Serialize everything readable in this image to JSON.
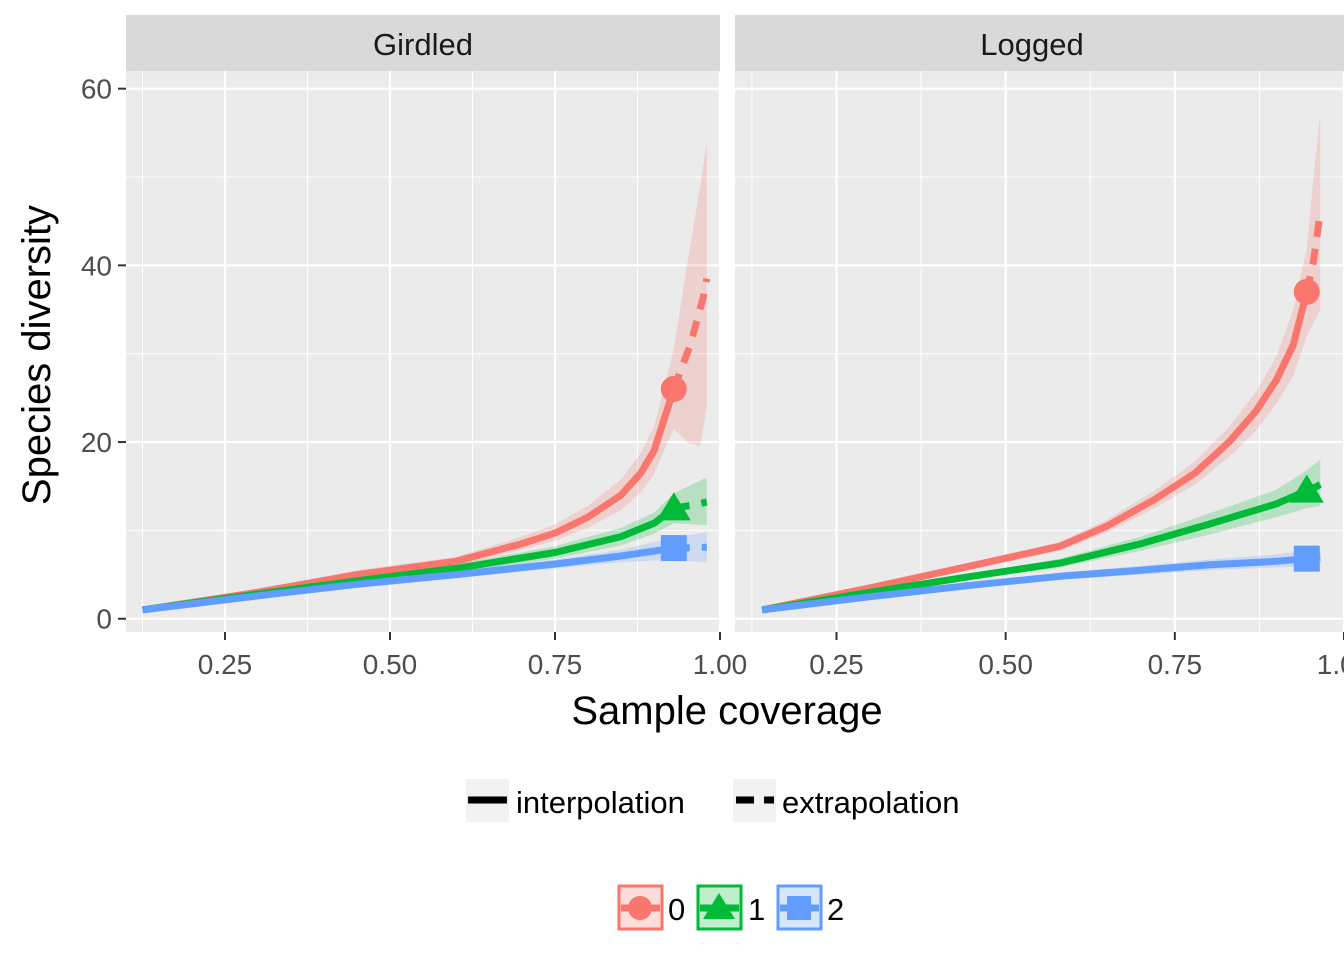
{
  "chart_data": {
    "type": "line",
    "xlabel": "Sample coverage",
    "ylabel": "Species diversity",
    "xlim": [
      0.1,
      1.0
    ],
    "ylim": [
      -1.5,
      62
    ],
    "x_ticks": [
      0.25,
      0.5,
      0.75,
      1.0
    ],
    "x_tick_labels": [
      "0.25",
      "0.50",
      "0.75",
      "1.00"
    ],
    "y_ticks": [
      0,
      20,
      40,
      60
    ],
    "y_tick_labels": [
      "0",
      "20",
      "40",
      "60"
    ],
    "legend_linetype": {
      "position": "bottom",
      "items": [
        {
          "key": "interpolation",
          "label": "interpolation"
        },
        {
          "key": "extrapolation",
          "label": "extrapolation"
        }
      ]
    },
    "legend_order": {
      "position": "bottom",
      "items": [
        {
          "key": "0",
          "label": "0",
          "color": "#F8766D",
          "shape": "circle"
        },
        {
          "key": "1",
          "label": "1",
          "color": "#00BA38",
          "shape": "triangle"
        },
        {
          "key": "2",
          "label": "2",
          "color": "#619CFF",
          "shape": "square"
        }
      ]
    },
    "panels": [
      {
        "name": "girdled",
        "title": "Girdled",
        "series": [
          {
            "order": "0",
            "color": "#F8766D",
            "shape": "circle",
            "observed": [
              0.93,
              26
            ],
            "interp": [
              [
                0.125,
                1
              ],
              [
                0.3,
                3
              ],
              [
                0.45,
                5
              ],
              [
                0.6,
                6.5
              ],
              [
                0.7,
                8.5
              ],
              [
                0.75,
                9.7
              ],
              [
                0.8,
                11.5
              ],
              [
                0.85,
                14
              ],
              [
                0.88,
                16.5
              ],
              [
                0.9,
                19
              ],
              [
                0.915,
                22.5
              ],
              [
                0.93,
                26
              ]
            ],
            "extrap": [
              [
                0.93,
                26
              ],
              [
                0.955,
                31
              ],
              [
                0.975,
                36.5
              ],
              [
                0.98,
                38.5
              ]
            ],
            "lower": [
              [
                0.125,
                1
              ],
              [
                0.3,
                2.8
              ],
              [
                0.45,
                4.6
              ],
              [
                0.6,
                6
              ],
              [
                0.7,
                7.8
              ],
              [
                0.75,
                8.8
              ],
              [
                0.8,
                10.3
              ],
              [
                0.85,
                12.3
              ],
              [
                0.88,
                14.3
              ],
              [
                0.9,
                16.3
              ],
              [
                0.915,
                19
              ],
              [
                0.93,
                21.5
              ],
              [
                0.95,
                20
              ],
              [
                0.97,
                19.5
              ],
              [
                0.98,
                24
              ]
            ],
            "upper": [
              [
                0.125,
                1.2
              ],
              [
                0.3,
                3.3
              ],
              [
                0.45,
                5.5
              ],
              [
                0.6,
                7
              ],
              [
                0.7,
                9.3
              ],
              [
                0.75,
                10.7
              ],
              [
                0.8,
                12.8
              ],
              [
                0.85,
                15.8
              ],
              [
                0.88,
                18.8
              ],
              [
                0.9,
                21.8
              ],
              [
                0.915,
                26
              ],
              [
                0.93,
                30.5
              ],
              [
                0.95,
                40
              ],
              [
                0.97,
                49
              ],
              [
                0.98,
                54
              ]
            ]
          },
          {
            "order": "1",
            "color": "#00BA38",
            "shape": "triangle",
            "observed": [
              0.93,
              12.5
            ],
            "interp": [
              [
                0.125,
                1
              ],
              [
                0.3,
                2.8
              ],
              [
                0.45,
                4.3
              ],
              [
                0.6,
                5.7
              ],
              [
                0.75,
                7.5
              ],
              [
                0.85,
                9.3
              ],
              [
                0.9,
                10.8
              ],
              [
                0.93,
                12.5
              ]
            ],
            "extrap": [
              [
                0.93,
                12.5
              ],
              [
                0.96,
                12.9
              ],
              [
                0.98,
                13.2
              ]
            ],
            "lower": [
              [
                0.125,
                1
              ],
              [
                0.3,
                2.6
              ],
              [
                0.45,
                4
              ],
              [
                0.6,
                5.2
              ],
              [
                0.75,
                6.8
              ],
              [
                0.85,
                8.3
              ],
              [
                0.9,
                9.6
              ],
              [
                0.93,
                10.8
              ],
              [
                0.98,
                10.6
              ]
            ],
            "upper": [
              [
                0.125,
                1.2
              ],
              [
                0.3,
                3
              ],
              [
                0.45,
                4.6
              ],
              [
                0.6,
                6.2
              ],
              [
                0.75,
                8.2
              ],
              [
                0.85,
                10.3
              ],
              [
                0.9,
                12
              ],
              [
                0.93,
                14.2
              ],
              [
                0.98,
                16
              ]
            ]
          },
          {
            "order": "2",
            "color": "#619CFF",
            "shape": "square",
            "observed": [
              0.93,
              8
            ],
            "interp": [
              [
                0.125,
                1
              ],
              [
                0.3,
                2.6
              ],
              [
                0.45,
                3.9
              ],
              [
                0.6,
                5
              ],
              [
                0.75,
                6.2
              ],
              [
                0.85,
                7.1
              ],
              [
                0.93,
                8
              ]
            ],
            "extrap": [
              [
                0.93,
                8
              ],
              [
                0.96,
                8.05
              ],
              [
                0.98,
                8.1
              ]
            ],
            "lower": [
              [
                0.125,
                1
              ],
              [
                0.3,
                2.4
              ],
              [
                0.45,
                3.6
              ],
              [
                0.6,
                4.6
              ],
              [
                0.75,
                5.7
              ],
              [
                0.85,
                6.4
              ],
              [
                0.93,
                6.7
              ],
              [
                0.98,
                6.4
              ]
            ],
            "upper": [
              [
                0.125,
                1.1
              ],
              [
                0.3,
                2.8
              ],
              [
                0.45,
                4.2
              ],
              [
                0.6,
                5.4
              ],
              [
                0.75,
                6.7
              ],
              [
                0.85,
                7.8
              ],
              [
                0.93,
                9.2
              ],
              [
                0.98,
                9.8
              ]
            ]
          }
        ]
      },
      {
        "name": "logged",
        "title": "Logged",
        "series": [
          {
            "order": "0",
            "color": "#F8766D",
            "shape": "circle",
            "observed": [
              0.945,
              37
            ],
            "interp": [
              [
                0.14,
                1
              ],
              [
                0.3,
                3.5
              ],
              [
                0.45,
                6
              ],
              [
                0.58,
                8.2
              ],
              [
                0.65,
                10.5
              ],
              [
                0.72,
                13.5
              ],
              [
                0.78,
                16.5
              ],
              [
                0.83,
                20
              ],
              [
                0.87,
                23.5
              ],
              [
                0.9,
                27
              ],
              [
                0.925,
                31
              ],
              [
                0.945,
                37
              ]
            ],
            "extrap": [
              [
                0.945,
                37
              ],
              [
                0.955,
                40.5
              ],
              [
                0.965,
                46
              ]
            ],
            "lower": [
              [
                0.14,
                1
              ],
              [
                0.3,
                3.3
              ],
              [
                0.45,
                5.6
              ],
              [
                0.58,
                7.7
              ],
              [
                0.65,
                9.8
              ],
              [
                0.72,
                12.5
              ],
              [
                0.78,
                15.2
              ],
              [
                0.83,
                18.3
              ],
              [
                0.87,
                21.3
              ],
              [
                0.9,
                24.3
              ],
              [
                0.925,
                27.5
              ],
              [
                0.945,
                32
              ],
              [
                0.955,
                33.5
              ],
              [
                0.965,
                35
              ]
            ],
            "upper": [
              [
                0.14,
                1.2
              ],
              [
                0.3,
                3.7
              ],
              [
                0.45,
                6.4
              ],
              [
                0.58,
                8.7
              ],
              [
                0.65,
                11.2
              ],
              [
                0.72,
                14.5
              ],
              [
                0.78,
                17.8
              ],
              [
                0.83,
                21.7
              ],
              [
                0.87,
                25.7
              ],
              [
                0.9,
                29.7
              ],
              [
                0.925,
                35
              ],
              [
                0.945,
                42
              ],
              [
                0.955,
                50
              ],
              [
                0.965,
                57
              ]
            ]
          },
          {
            "order": "1",
            "color": "#00BA38",
            "shape": "triangle",
            "observed": [
              0.945,
              14.5
            ],
            "interp": [
              [
                0.14,
                1
              ],
              [
                0.3,
                3
              ],
              [
                0.45,
                4.8
              ],
              [
                0.58,
                6.3
              ],
              [
                0.7,
                8.5
              ],
              [
                0.8,
                10.7
              ],
              [
                0.9,
                13
              ],
              [
                0.945,
                14.5
              ]
            ],
            "extrap": [
              [
                0.945,
                14.5
              ],
              [
                0.955,
                14.8
              ],
              [
                0.965,
                15.2
              ]
            ],
            "lower": [
              [
                0.14,
                1
              ],
              [
                0.3,
                2.8
              ],
              [
                0.45,
                4.5
              ],
              [
                0.58,
                5.8
              ],
              [
                0.7,
                7.7
              ],
              [
                0.8,
                9.5
              ],
              [
                0.9,
                11.5
              ],
              [
                0.945,
                12.5
              ],
              [
                0.965,
                12.8
              ]
            ],
            "upper": [
              [
                0.14,
                1.2
              ],
              [
                0.3,
                3.2
              ],
              [
                0.45,
                5.1
              ],
              [
                0.58,
                6.8
              ],
              [
                0.7,
                9.3
              ],
              [
                0.8,
                11.9
              ],
              [
                0.9,
                14.6
              ],
              [
                0.945,
                16.8
              ],
              [
                0.965,
                18
              ]
            ]
          },
          {
            "order": "2",
            "color": "#619CFF",
            "shape": "square",
            "observed": [
              0.945,
              6.8
            ],
            "interp": [
              [
                0.14,
                1
              ],
              [
                0.3,
                2.5
              ],
              [
                0.45,
                3.8
              ],
              [
                0.58,
                4.8
              ],
              [
                0.7,
                5.5
              ],
              [
                0.8,
                6.1
              ],
              [
                0.9,
                6.5
              ],
              [
                0.945,
                6.8
              ]
            ],
            "extrap": [
              [
                0.945,
                6.8
              ],
              [
                0.955,
                6.85
              ],
              [
                0.965,
                6.9
              ]
            ],
            "lower": [
              [
                0.14,
                1
              ],
              [
                0.3,
                2.3
              ],
              [
                0.45,
                3.5
              ],
              [
                0.58,
                4.4
              ],
              [
                0.7,
                5
              ],
              [
                0.8,
                5.5
              ],
              [
                0.9,
                5.8
              ],
              [
                0.945,
                5.9
              ],
              [
                0.965,
                5.9
              ]
            ],
            "upper": [
              [
                0.14,
                1.1
              ],
              [
                0.3,
                2.7
              ],
              [
                0.45,
                4.1
              ],
              [
                0.58,
                5.2
              ],
              [
                0.7,
                6
              ],
              [
                0.8,
                6.7
              ],
              [
                0.9,
                7.3
              ],
              [
                0.945,
                7.7
              ],
              [
                0.965,
                7.9
              ]
            ]
          }
        ]
      }
    ]
  }
}
